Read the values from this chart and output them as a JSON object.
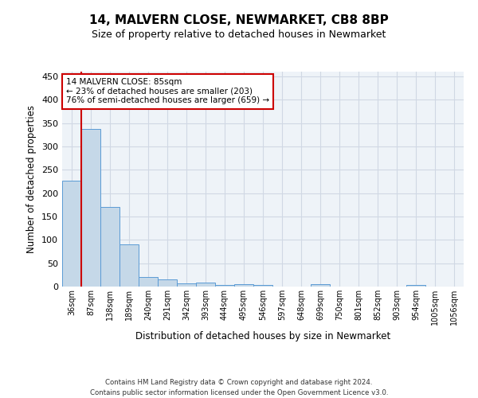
{
  "title": "14, MALVERN CLOSE, NEWMARKET, CB8 8BP",
  "subtitle": "Size of property relative to detached houses in Newmarket",
  "xlabel": "Distribution of detached houses by size in Newmarket",
  "ylabel": "Number of detached properties",
  "footer_line1": "Contains HM Land Registry data © Crown copyright and database right 2024.",
  "footer_line2": "Contains public sector information licensed under the Open Government Licence v3.0.",
  "bar_categories": [
    "36sqm",
    "87sqm",
    "138sqm",
    "189sqm",
    "240sqm",
    "291sqm",
    "342sqm",
    "393sqm",
    "444sqm",
    "495sqm",
    "546sqm",
    "597sqm",
    "648sqm",
    "699sqm",
    "750sqm",
    "801sqm",
    "852sqm",
    "903sqm",
    "954sqm",
    "1005sqm",
    "1056sqm"
  ],
  "bar_values": [
    227,
    338,
    170,
    90,
    21,
    16,
    7,
    8,
    4,
    5,
    4,
    0,
    0,
    5,
    0,
    0,
    0,
    0,
    3,
    0,
    0
  ],
  "bar_color": "#c5d8e8",
  "bar_edge_color": "#5b9bd5",
  "grid_color": "#d0d8e4",
  "background_color": "#eef3f8",
  "ylim": [
    0,
    460
  ],
  "yticks": [
    0,
    50,
    100,
    150,
    200,
    250,
    300,
    350,
    400,
    450
  ],
  "annotation_box_text": "14 MALVERN CLOSE: 85sqm\n← 23% of detached houses are smaller (203)\n76% of semi-detached houses are larger (659) →",
  "vline_color": "#cc0000",
  "title_fontsize": 11,
  "subtitle_fontsize": 9
}
